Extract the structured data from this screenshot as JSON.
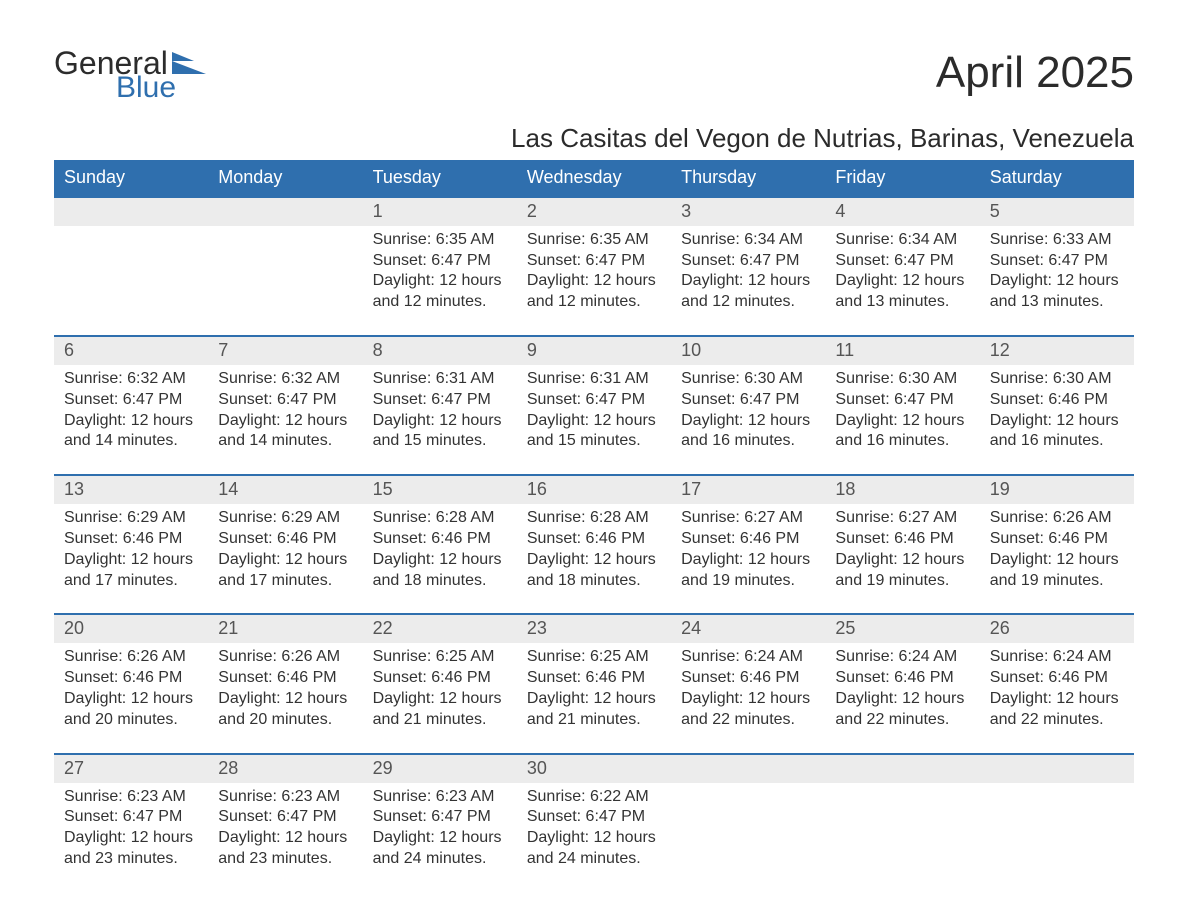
{
  "brand": {
    "word1": "General",
    "word2": "Blue",
    "mark_color": "#2f6fae"
  },
  "title": "April 2025",
  "subtitle": "Las Casitas del Vegon de Nutrias, Barinas, Venezuela",
  "colors": {
    "header_bg": "#2f6fae",
    "header_text": "#ffffff",
    "daynum_bg": "#ececec",
    "week_border": "#2f6fae",
    "body_text": "#333333",
    "page_bg": "#ffffff"
  },
  "fontsizes": {
    "title": 44,
    "subtitle": 26,
    "header": 18,
    "daynum": 18,
    "body": 16
  },
  "day_headers": [
    "Sunday",
    "Monday",
    "Tuesday",
    "Wednesday",
    "Thursday",
    "Friday",
    "Saturday"
  ],
  "labels": {
    "sunrise": "Sunrise: ",
    "sunset": "Sunset: ",
    "daylight": "Daylight: "
  },
  "weeks": [
    [
      null,
      null,
      {
        "n": "1",
        "sunrise": "6:35 AM",
        "sunset": "6:47 PM",
        "daylight": "12 hours and 12 minutes."
      },
      {
        "n": "2",
        "sunrise": "6:35 AM",
        "sunset": "6:47 PM",
        "daylight": "12 hours and 12 minutes."
      },
      {
        "n": "3",
        "sunrise": "6:34 AM",
        "sunset": "6:47 PM",
        "daylight": "12 hours and 12 minutes."
      },
      {
        "n": "4",
        "sunrise": "6:34 AM",
        "sunset": "6:47 PM",
        "daylight": "12 hours and 13 minutes."
      },
      {
        "n": "5",
        "sunrise": "6:33 AM",
        "sunset": "6:47 PM",
        "daylight": "12 hours and 13 minutes."
      }
    ],
    [
      {
        "n": "6",
        "sunrise": "6:32 AM",
        "sunset": "6:47 PM",
        "daylight": "12 hours and 14 minutes."
      },
      {
        "n": "7",
        "sunrise": "6:32 AM",
        "sunset": "6:47 PM",
        "daylight": "12 hours and 14 minutes."
      },
      {
        "n": "8",
        "sunrise": "6:31 AM",
        "sunset": "6:47 PM",
        "daylight": "12 hours and 15 minutes."
      },
      {
        "n": "9",
        "sunrise": "6:31 AM",
        "sunset": "6:47 PM",
        "daylight": "12 hours and 15 minutes."
      },
      {
        "n": "10",
        "sunrise": "6:30 AM",
        "sunset": "6:47 PM",
        "daylight": "12 hours and 16 minutes."
      },
      {
        "n": "11",
        "sunrise": "6:30 AM",
        "sunset": "6:47 PM",
        "daylight": "12 hours and 16 minutes."
      },
      {
        "n": "12",
        "sunrise": "6:30 AM",
        "sunset": "6:46 PM",
        "daylight": "12 hours and 16 minutes."
      }
    ],
    [
      {
        "n": "13",
        "sunrise": "6:29 AM",
        "sunset": "6:46 PM",
        "daylight": "12 hours and 17 minutes."
      },
      {
        "n": "14",
        "sunrise": "6:29 AM",
        "sunset": "6:46 PM",
        "daylight": "12 hours and 17 minutes."
      },
      {
        "n": "15",
        "sunrise": "6:28 AM",
        "sunset": "6:46 PM",
        "daylight": "12 hours and 18 minutes."
      },
      {
        "n": "16",
        "sunrise": "6:28 AM",
        "sunset": "6:46 PM",
        "daylight": "12 hours and 18 minutes."
      },
      {
        "n": "17",
        "sunrise": "6:27 AM",
        "sunset": "6:46 PM",
        "daylight": "12 hours and 19 minutes."
      },
      {
        "n": "18",
        "sunrise": "6:27 AM",
        "sunset": "6:46 PM",
        "daylight": "12 hours and 19 minutes."
      },
      {
        "n": "19",
        "sunrise": "6:26 AM",
        "sunset": "6:46 PM",
        "daylight": "12 hours and 19 minutes."
      }
    ],
    [
      {
        "n": "20",
        "sunrise": "6:26 AM",
        "sunset": "6:46 PM",
        "daylight": "12 hours and 20 minutes."
      },
      {
        "n": "21",
        "sunrise": "6:26 AM",
        "sunset": "6:46 PM",
        "daylight": "12 hours and 20 minutes."
      },
      {
        "n": "22",
        "sunrise": "6:25 AM",
        "sunset": "6:46 PM",
        "daylight": "12 hours and 21 minutes."
      },
      {
        "n": "23",
        "sunrise": "6:25 AM",
        "sunset": "6:46 PM",
        "daylight": "12 hours and 21 minutes."
      },
      {
        "n": "24",
        "sunrise": "6:24 AM",
        "sunset": "6:46 PM",
        "daylight": "12 hours and 22 minutes."
      },
      {
        "n": "25",
        "sunrise": "6:24 AM",
        "sunset": "6:46 PM",
        "daylight": "12 hours and 22 minutes."
      },
      {
        "n": "26",
        "sunrise": "6:24 AM",
        "sunset": "6:46 PM",
        "daylight": "12 hours and 22 minutes."
      }
    ],
    [
      {
        "n": "27",
        "sunrise": "6:23 AM",
        "sunset": "6:47 PM",
        "daylight": "12 hours and 23 minutes."
      },
      {
        "n": "28",
        "sunrise": "6:23 AM",
        "sunset": "6:47 PM",
        "daylight": "12 hours and 23 minutes."
      },
      {
        "n": "29",
        "sunrise": "6:23 AM",
        "sunset": "6:47 PM",
        "daylight": "12 hours and 24 minutes."
      },
      {
        "n": "30",
        "sunrise": "6:22 AM",
        "sunset": "6:47 PM",
        "daylight": "12 hours and 24 minutes."
      },
      null,
      null,
      null
    ]
  ]
}
